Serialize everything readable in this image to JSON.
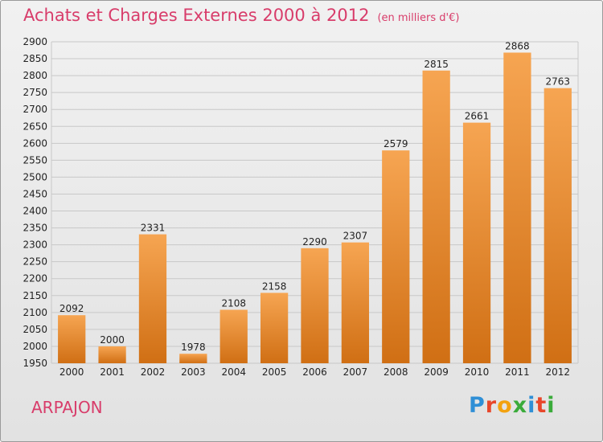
{
  "header": {
    "title": "Achats et Charges Externes 2000 à 2012",
    "subtitle": "(en milliers d'€)"
  },
  "footer": {
    "city": "ARPAJON",
    "logo": {
      "letters": [
        "P",
        "r",
        "o",
        "x",
        "i",
        "t",
        "i"
      ],
      "colors": [
        "#2f8fd6",
        "#e8462a",
        "#f3a20f",
        "#3aab3a",
        "#2f8fd6",
        "#e8462a",
        "#3aab3a"
      ]
    }
  },
  "colors": {
    "bar_top": "#f6a552",
    "bar_bottom": "#d06f14",
    "grid": "#c8c8c8",
    "title": "#d83c6a"
  },
  "chart_data": {
    "type": "bar",
    "categories": [
      "2000",
      "2001",
      "2002",
      "2003",
      "2004",
      "2005",
      "2006",
      "2007",
      "2008",
      "2009",
      "2010",
      "2011",
      "2012"
    ],
    "values": [
      2092,
      2000,
      2331,
      1978,
      2108,
      2158,
      2290,
      2307,
      2579,
      2815,
      2661,
      2868,
      2763
    ],
    "title": "Achats et Charges Externes 2000 à 2012",
    "ylim": [
      1950,
      2900
    ],
    "yticks": [
      1950,
      2000,
      2050,
      2100,
      2150,
      2200,
      2250,
      2300,
      2350,
      2400,
      2450,
      2500,
      2550,
      2600,
      2650,
      2700,
      2750,
      2800,
      2850,
      2900
    ],
    "grid": true
  }
}
